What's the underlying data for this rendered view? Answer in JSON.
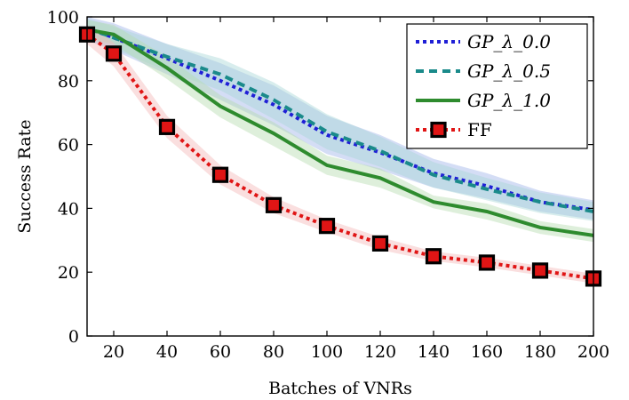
{
  "chart_data": {
    "type": "line",
    "xlabel": "Batches of VNRs",
    "ylabel": "Success Rate",
    "xlim": [
      10,
      200
    ],
    "ylim": [
      0,
      100
    ],
    "xticks": [
      20,
      40,
      60,
      80,
      100,
      120,
      140,
      160,
      180,
      200
    ],
    "yticks": [
      0,
      20,
      40,
      60,
      80,
      100
    ],
    "grid": false,
    "legend_position": "top-right",
    "x": [
      10,
      20,
      40,
      60,
      80,
      100,
      120,
      140,
      160,
      180,
      200
    ],
    "series": [
      {
        "name": "GP_λ_0.0",
        "color": "#1f1fd6",
        "line_style": "dotted",
        "band_color": "#9fb4e8",
        "values": [
          96.5,
          93.5,
          87,
          80,
          72.5,
          63,
          57.5,
          51,
          47,
          42,
          39.5
        ],
        "lower": [
          92.5,
          89.5,
          82,
          74,
          66,
          57,
          52,
          46.5,
          43,
          39,
          36.5
        ],
        "upper": [
          100,
          98,
          91.5,
          85.5,
          78.5,
          69,
          63,
          55.5,
          51,
          45.5,
          42.5
        ]
      },
      {
        "name": "GP_λ_0.5",
        "color": "#1a8a8a",
        "line_style": "dashed",
        "band_color": "#a8d6d6",
        "values": [
          96.5,
          93.5,
          87.5,
          82,
          74,
          64,
          58,
          50.5,
          46,
          42,
          39
        ],
        "lower": [
          93,
          90,
          83,
          77,
          68,
          58.5,
          53,
          46.5,
          42.5,
          38.5,
          36
        ],
        "upper": [
          99.5,
          97,
          91.5,
          87,
          79.5,
          69.5,
          62.5,
          54.5,
          49.5,
          45,
          42
        ]
      },
      {
        "name": "GP_λ_1.0",
        "color": "#2e8b2e",
        "line_style": "solid",
        "band_color": "#b5dcb0",
        "values": [
          96,
          94.5,
          84,
          72,
          63.5,
          53.5,
          49.5,
          42,
          39,
          34,
          31.5
        ],
        "lower": [
          93,
          91.5,
          80.5,
          68.5,
          59.5,
          50.5,
          46.5,
          40,
          36.5,
          32,
          29.5
        ],
        "upper": [
          99,
          97.5,
          87.5,
          75.5,
          67,
          56.5,
          52.5,
          44,
          41.5,
          36,
          33.5
        ]
      },
      {
        "name": "FF",
        "color": "#e01515",
        "line_style": "dotted",
        "marker": "square",
        "band_color": "#f4b7b7",
        "values": [
          94.5,
          88.5,
          65.5,
          50.5,
          41,
          34.5,
          29,
          25,
          23,
          20.5,
          18
        ],
        "lower": [
          91.5,
          84.5,
          62,
          47.5,
          38.5,
          32.5,
          27,
          23.5,
          21.5,
          19,
          16.5
        ],
        "upper": [
          97.5,
          92,
          69,
          53.5,
          43.5,
          36.5,
          31,
          26.5,
          24.5,
          22,
          19.5
        ]
      }
    ]
  }
}
